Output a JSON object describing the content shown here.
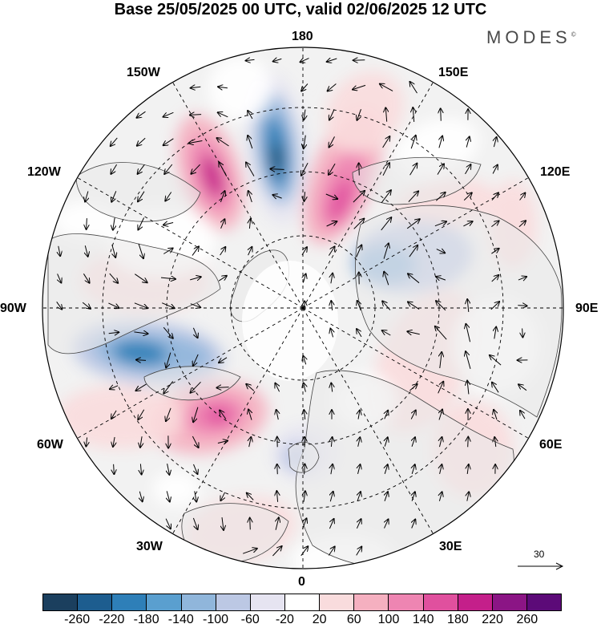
{
  "title": "Base 25/05/2025 00 UTC, valid 02/06/2025 12 UTC",
  "brand": "MODES",
  "brand_mark": "©",
  "longitude_labels": [
    "180",
    "150E",
    "120E",
    "90E",
    "60E",
    "30E",
    "0",
    "30W",
    "60W",
    "90W",
    "120W",
    "150W"
  ],
  "reference_vector": {
    "label": "30"
  },
  "colorbar": {
    "ticks": [
      "-260",
      "-220",
      "-180",
      "-140",
      "-100",
      "-60",
      "-20",
      "20",
      "60",
      "100",
      "140",
      "180",
      "220",
      "260"
    ],
    "colors": [
      "#1b3f5e",
      "#1d5d8f",
      "#2e7fb8",
      "#5a9fcf",
      "#90b6db",
      "#bcc8e4",
      "#e6e4f1",
      "#ffffff",
      "#f9dcdd",
      "#f5b0c0",
      "#ee85b2",
      "#e0509e",
      "#c41f8a",
      "#8b1585",
      "#5c0a78"
    ]
  },
  "colors": {
    "land": "#e9e9e9",
    "coast": "#444444",
    "grid": "#000000"
  }
}
